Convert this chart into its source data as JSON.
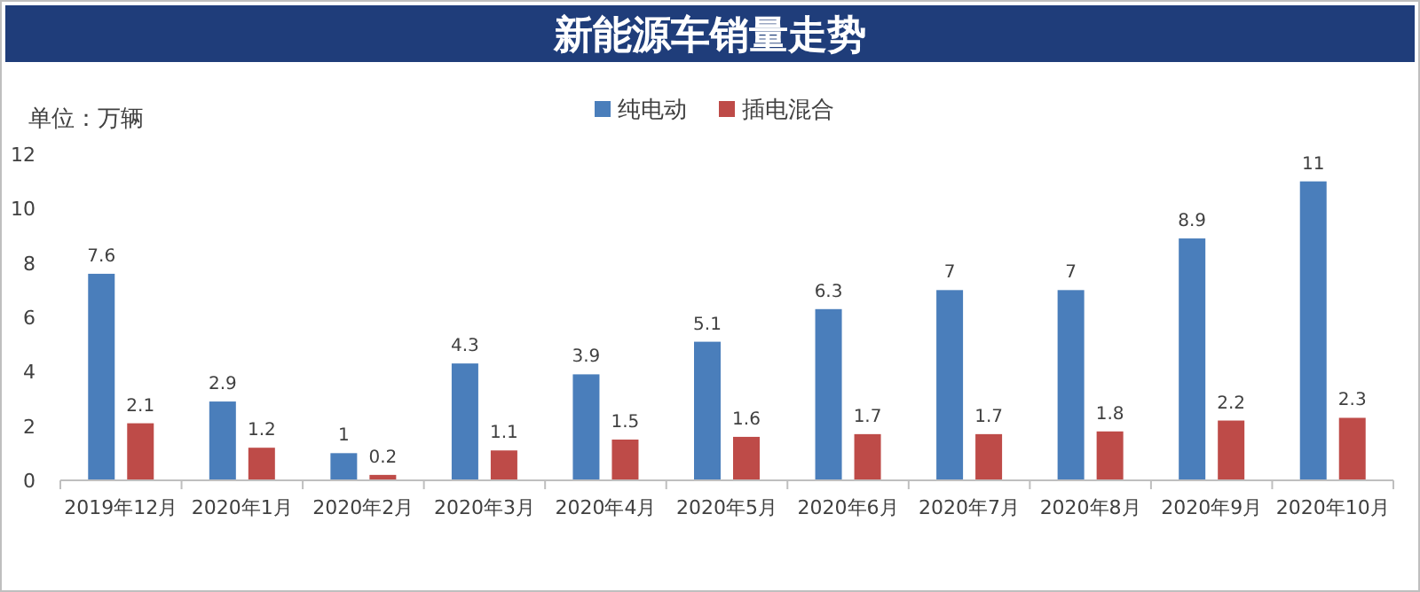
{
  "chart_data": {
    "type": "bar",
    "title": "新能源车销量走势",
    "annotations": [
      "单位：万辆"
    ],
    "categories": [
      "2019年12月",
      "2020年1月",
      "2020年2月",
      "2020年3月",
      "2020年4月",
      "2020年5月",
      "2020年6月",
      "2020年7月",
      "2020年8月",
      "2020年9月",
      "2020年10月"
    ],
    "series": [
      {
        "name": "纯电动",
        "color": "#4a7ebb",
        "values": [
          7.6,
          2.9,
          1,
          4.3,
          3.9,
          5.1,
          6.3,
          7,
          7,
          8.9,
          11
        ]
      },
      {
        "name": "插电混合",
        "color": "#be4b48",
        "values": [
          2.1,
          1.2,
          0.2,
          1.1,
          1.5,
          1.6,
          1.7,
          1.7,
          1.8,
          2.2,
          2.3
        ]
      }
    ],
    "ylim": [
      0,
      12
    ],
    "yticks": [
      0,
      2,
      4,
      6,
      8,
      10,
      12
    ],
    "data_labels": true,
    "legend": "top"
  }
}
